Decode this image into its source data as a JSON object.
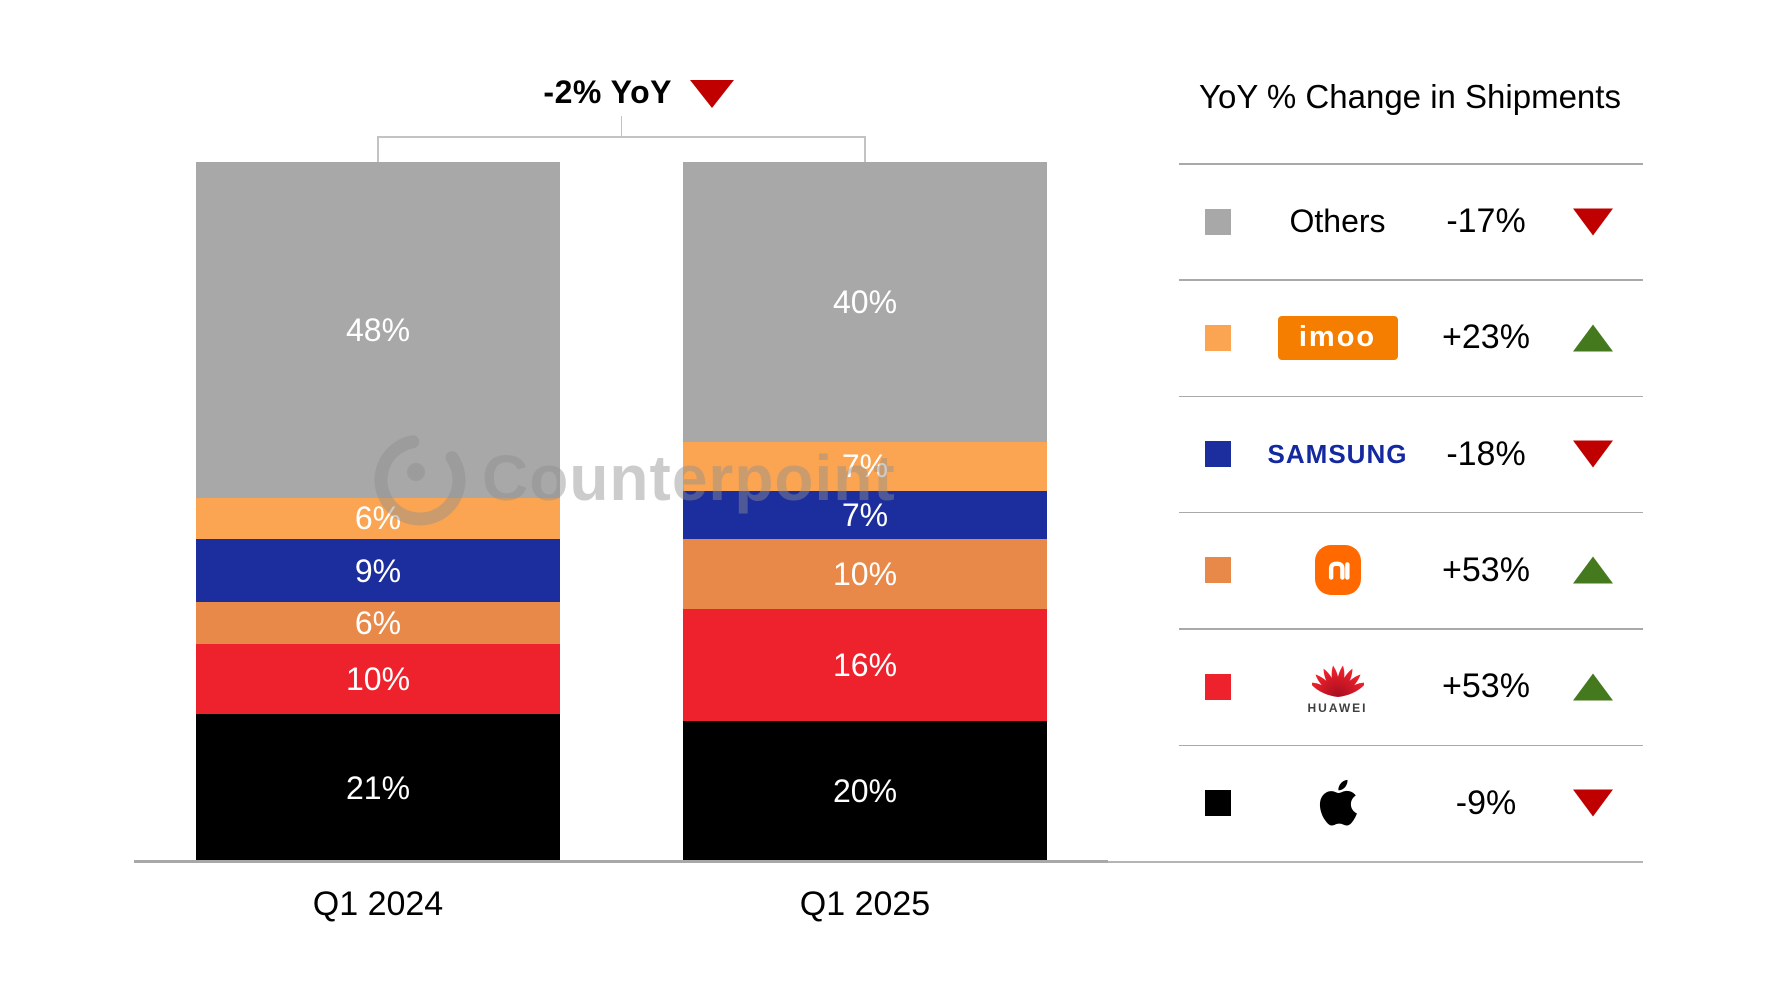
{
  "page": {
    "background": "#ffffff"
  },
  "header": {
    "title": "-2% YoY",
    "direction": "down",
    "triangle_color": "#c00000"
  },
  "watermark": {
    "text": "Counterpoint"
  },
  "chart_data": {
    "type": "bar",
    "subtype": "stacked-percent-columns",
    "title": "-2% YoY",
    "title_direction": "down",
    "categories": [
      "Q1 2024",
      "Q1 2025"
    ],
    "unit": "%",
    "ylim": [
      0,
      100
    ],
    "axis_color": "#a8a8a8",
    "series": [
      {
        "name": "Apple",
        "color": "#000000",
        "values": [
          21,
          20
        ]
      },
      {
        "name": "Huawei",
        "color": "#ee222c",
        "values": [
          10,
          16
        ]
      },
      {
        "name": "Xiaomi",
        "color": "#e8894a",
        "values": [
          6,
          10
        ]
      },
      {
        "name": "Samsung",
        "color": "#1c2e9e",
        "values": [
          9,
          7
        ]
      },
      {
        "name": "imoo",
        "color": "#fba552",
        "values": [
          6,
          7
        ]
      },
      {
        "name": "Others",
        "color": "#a8a8a8",
        "values": [
          48,
          40
        ]
      }
    ],
    "value_label_style": "white-inside"
  },
  "legend": {
    "title": "YoY % Change in Shipments",
    "up_color": "#44791d",
    "down_color": "#c00000",
    "rows": [
      {
        "brand": "Others",
        "label": "Others",
        "logo": "others-label",
        "swatch": "#a8a8a8",
        "change": "-17%",
        "direction": "down"
      },
      {
        "brand": "imoo",
        "label": "imoo",
        "logo": "imoo-wordmark",
        "swatch": "#fba552",
        "change": "+23%",
        "direction": "up"
      },
      {
        "brand": "Samsung",
        "label": "SAMSUNG",
        "logo": "samsung-wordmark",
        "swatch": "#1c2e9e",
        "change": "-18%",
        "direction": "down"
      },
      {
        "brand": "Xiaomi",
        "label": "Mi",
        "logo": "xiaomi-logo",
        "swatch": "#e8894a",
        "change": "+53%",
        "direction": "up"
      },
      {
        "brand": "Huawei",
        "label": "HUAWEI",
        "logo": "huawei-logo",
        "swatch": "#ee222c",
        "change": "+53%",
        "direction": "up"
      },
      {
        "brand": "Apple",
        "label": "Apple",
        "logo": "apple-logo",
        "swatch": "#000000",
        "change": "-9%",
        "direction": "down"
      }
    ],
    "brand_colors": {
      "imoo_bg": "#f57d00",
      "samsung_blue": "#1428a0",
      "xiaomi_orange": "#ff6900",
      "huawei_red": "#d50f23",
      "huawei_caption": "#3f3f3f",
      "apple_black": "#000000"
    }
  }
}
